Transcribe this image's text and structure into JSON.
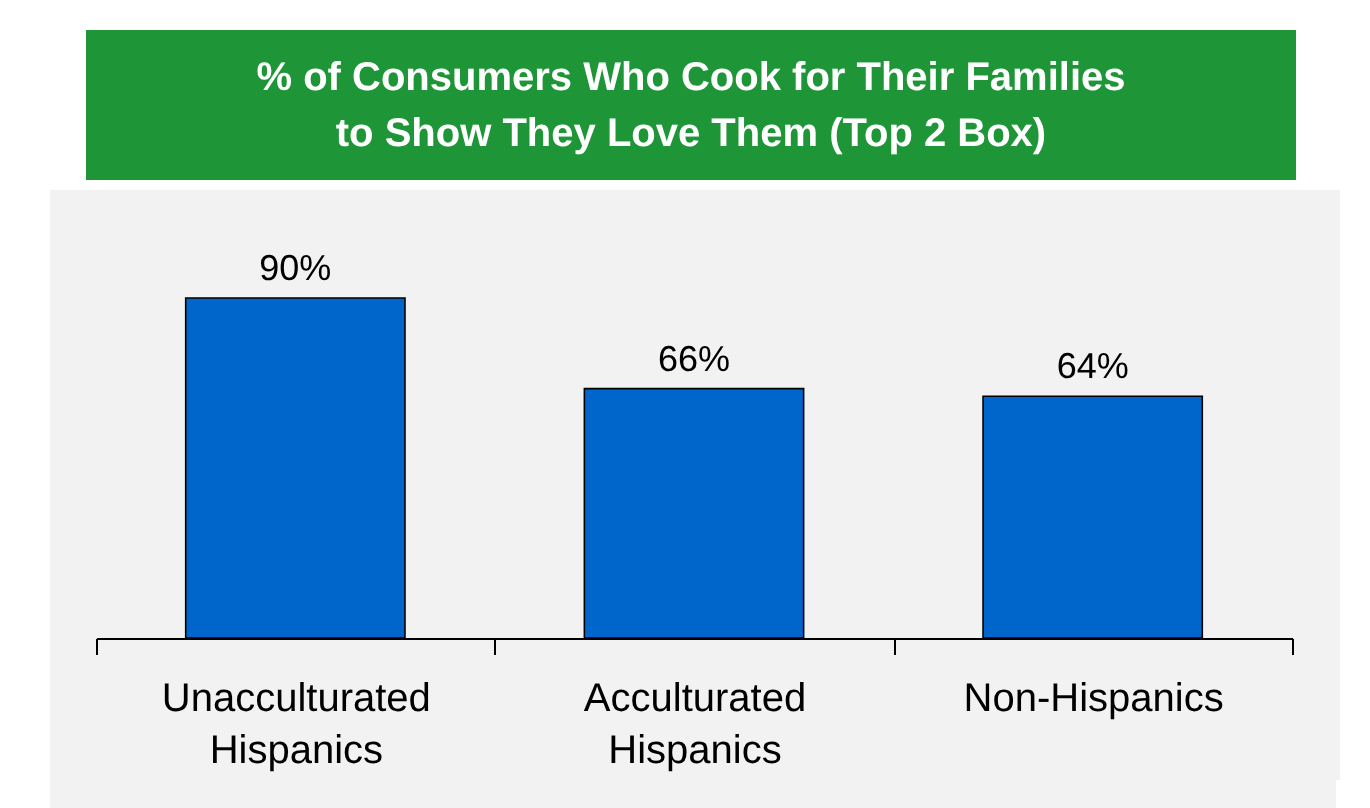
{
  "chart_data": {
    "type": "bar",
    "title": "% of Consumers Who Cook for Their Families\nto Show They Love Them (Top 2 Box)",
    "categories": [
      "Unacculturated Hispanics",
      "Acculturated Hispanics",
      "Non-Hispanics"
    ],
    "values": [
      90,
      66,
      64
    ],
    "color": "#0066cc",
    "value_labels": [
      "90%",
      "66%",
      "64%"
    ],
    "grid": false
  }
}
